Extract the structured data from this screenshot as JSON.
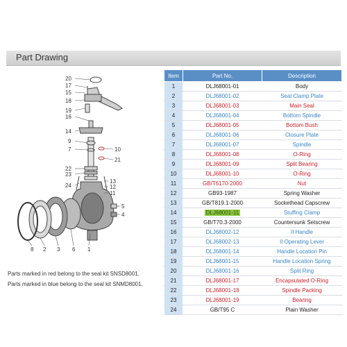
{
  "header": {
    "title": "Part Drawing"
  },
  "table": {
    "headers": {
      "item": "Item",
      "part_no": "Part No.",
      "description": "Description"
    },
    "rows": [
      {
        "item": "1",
        "part_no": "DLJ68001-01",
        "description": "Body",
        "color": "black"
      },
      {
        "item": "2",
        "part_no": "DLJ68001-02",
        "description": "Seal Clamp Plate",
        "color": "blue"
      },
      {
        "item": "3",
        "part_no": "DLJ68001-03",
        "description": "Main Seal",
        "color": "red"
      },
      {
        "item": "4",
        "part_no": "DLJ68001-04",
        "description": "Bottom Spindle",
        "color": "blue"
      },
      {
        "item": "5",
        "part_no": "DLJ68001-05",
        "description": "Bottom Bush",
        "color": "red"
      },
      {
        "item": "6",
        "part_no": "DLJ68001-06",
        "description": "Closure Plate",
        "color": "blue"
      },
      {
        "item": "7",
        "part_no": "DLJ68001-07",
        "description": "Spindle",
        "color": "blue"
      },
      {
        "item": "8",
        "part_no": "DLJ68001-08",
        "description": "O-Ring",
        "color": "red"
      },
      {
        "item": "9",
        "part_no": "DLJ68001-09",
        "description": "Split Bearing",
        "color": "red"
      },
      {
        "item": "10",
        "part_no": "DLJ68001-10",
        "description": "O-Ring",
        "color": "red"
      },
      {
        "item": "11",
        "part_no": "GB/T6170-2000",
        "description": "Nut",
        "color": "red"
      },
      {
        "item": "12",
        "part_no": "GB93-1987",
        "description": "Spring Washer",
        "color": "black"
      },
      {
        "item": "13",
        "part_no": "GB/T819.1-2000",
        "description": "Sockethead Capscrew",
        "color": "black"
      },
      {
        "item": "14",
        "part_no": "DLJ68001-11",
        "description": "Stuffing Clamp",
        "color": "blue",
        "highlight": true
      },
      {
        "item": "15",
        "part_no": "GB/T70.3-2000",
        "description": "Countersunk Setscrew",
        "color": "black"
      },
      {
        "item": "16",
        "part_no": "DLJ68002-12",
        "description": "II Handle",
        "color": "blue"
      },
      {
        "item": "17",
        "part_no": "DLJ68002-13",
        "description": "II Operating Lever",
        "color": "blue"
      },
      {
        "item": "18",
        "part_no": "DLJ68001-14",
        "description": "Handle Location Pin",
        "color": "blue"
      },
      {
        "item": "19",
        "part_no": "DLJ68001-15",
        "description": "Handle Location Spring",
        "color": "blue"
      },
      {
        "item": "20",
        "part_no": "DLJ68001-16",
        "description": "Split Ring",
        "color": "blue"
      },
      {
        "item": "21",
        "part_no": "DLJ68001-17",
        "description": "Encapsulated O-Ring",
        "color": "red"
      },
      {
        "item": "22",
        "part_no": "DLJ68001-18",
        "description": "Spindle Packing",
        "color": "red"
      },
      {
        "item": "23",
        "part_no": "DLJ68001-19",
        "description": "Bearing",
        "color": "red"
      },
      {
        "item": "24",
        "part_no": "GB/T95 C",
        "description": "Plain Washer",
        "color": "black"
      }
    ]
  },
  "notes": {
    "red": "Parts marked in red  belong to the seal kit SNSD8001.",
    "blue": "Parts marked in blue  belong to the seal kit SNMD8001."
  },
  "drawing": {
    "callouts": [
      "20",
      "17",
      "15",
      "18",
      "19",
      "16",
      "14",
      "9",
      "7",
      "10",
      "21",
      "22",
      "23",
      "24",
      "13",
      "12",
      "11",
      "5",
      "4",
      "8",
      "2",
      "3",
      "6",
      "1"
    ]
  }
}
